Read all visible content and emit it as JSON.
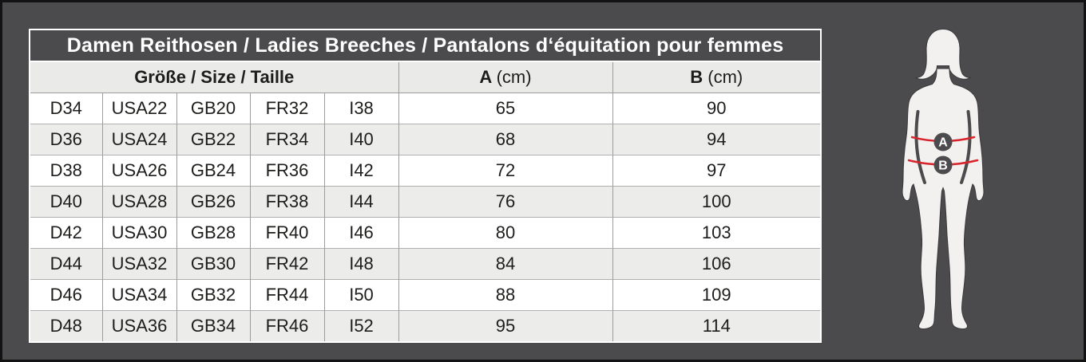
{
  "colors": {
    "bg": "#4b4b4d",
    "frame": "#121212",
    "table_border": "#ffffff",
    "grid_v": "#9c9c9c",
    "grid_h": "#b0b0b0",
    "row_white": "#ffffff",
    "row_alt": "#ececea",
    "header_bg": "#4b4b4d",
    "header_text": "#ffffff",
    "subheader_bg": "#eaeae8",
    "cell_text": "#1d1d1b",
    "silhouette": "#f2f1ef",
    "silhouette_outline": "#3a3a3c",
    "measure_line": "#d8232a",
    "marker_bg": "#4c4c4e",
    "marker_text": "#ffffff"
  },
  "table": {
    "title": "Damen Reithosen / Ladies Breeches / Pantalons d‘équitation pour femmes",
    "size_header": "Größe / Size / Taille",
    "col_a": {
      "label": "A",
      "unit": "(cm)"
    },
    "col_b": {
      "label": "B",
      "unit": "(cm)"
    },
    "rows": [
      {
        "d": "D34",
        "usa": "USA22",
        "gb": "GB20",
        "fr": "FR32",
        "i": "I38",
        "a": "65",
        "b": "90"
      },
      {
        "d": "D36",
        "usa": "USA24",
        "gb": "GB22",
        "fr": "FR34",
        "i": "I40",
        "a": "68",
        "b": "94"
      },
      {
        "d": "D38",
        "usa": "USA26",
        "gb": "GB24",
        "fr": "FR36",
        "i": "I42",
        "a": "72",
        "b": "97"
      },
      {
        "d": "D40",
        "usa": "USA28",
        "gb": "GB26",
        "fr": "FR38",
        "i": "I44",
        "a": "76",
        "b": "100"
      },
      {
        "d": "D42",
        "usa": "USA30",
        "gb": "GB28",
        "fr": "FR40",
        "i": "I46",
        "a": "80",
        "b": "103"
      },
      {
        "d": "D44",
        "usa": "USA32",
        "gb": "GB30",
        "fr": "FR42",
        "i": "I48",
        "a": "84",
        "b": "106"
      },
      {
        "d": "D46",
        "usa": "USA34",
        "gb": "GB32",
        "fr": "FR44",
        "i": "I50",
        "a": "88",
        "b": "109"
      },
      {
        "d": "D48",
        "usa": "USA36",
        "gb": "GB34",
        "fr": "FR46",
        "i": "I52",
        "a": "95",
        "b": "114"
      }
    ]
  },
  "figure": {
    "marker_a": "A",
    "marker_b": "B"
  }
}
